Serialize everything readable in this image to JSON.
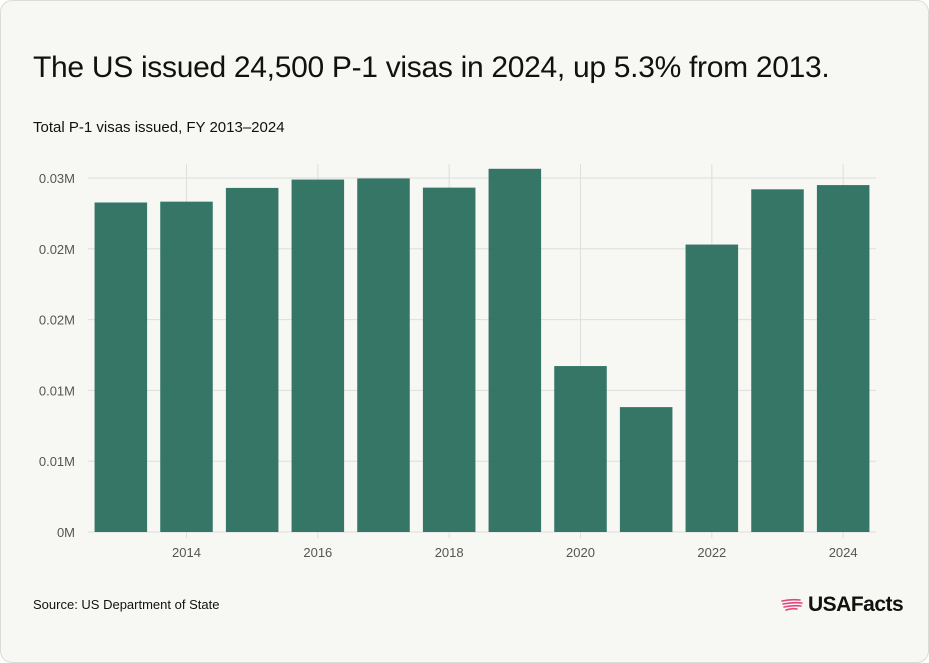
{
  "title": "The US issued 24,500 P-1 visas in 2024, up 5.3% from 2013.",
  "subtitle": "Total P-1 visas issued, FY 2013–2024",
  "source": "Source: US Department of State",
  "brand": {
    "name": "USAFacts",
    "icon": "us-flag-map-icon",
    "icon_color": "#e0497f"
  },
  "colors": {
    "bar": "#2e7262",
    "grid": "#dedede",
    "background": "#f7f7f3"
  },
  "chart_data": {
    "type": "bar",
    "categories": [
      "2013",
      "2014",
      "2015",
      "2016",
      "2017",
      "2018",
      "2019",
      "2020",
      "2021",
      "2022",
      "2023",
      "2024"
    ],
    "values": [
      23270,
      23330,
      24300,
      24890,
      24970,
      24320,
      25650,
      11720,
      8820,
      20300,
      24200,
      24500
    ],
    "x_tick_labels": [
      "2014",
      "2016",
      "2018",
      "2020",
      "2022",
      "2024"
    ],
    "y_ticks": [
      0,
      5000,
      10000,
      15000,
      20000,
      25000
    ],
    "y_tick_labels": [
      "0M",
      "0.01M",
      "0.01M",
      "0.02M",
      "0.02M",
      "0.03M"
    ],
    "ylim": [
      0,
      25000
    ],
    "grid": true,
    "legend": "none",
    "xlabel": "",
    "ylabel": ""
  }
}
